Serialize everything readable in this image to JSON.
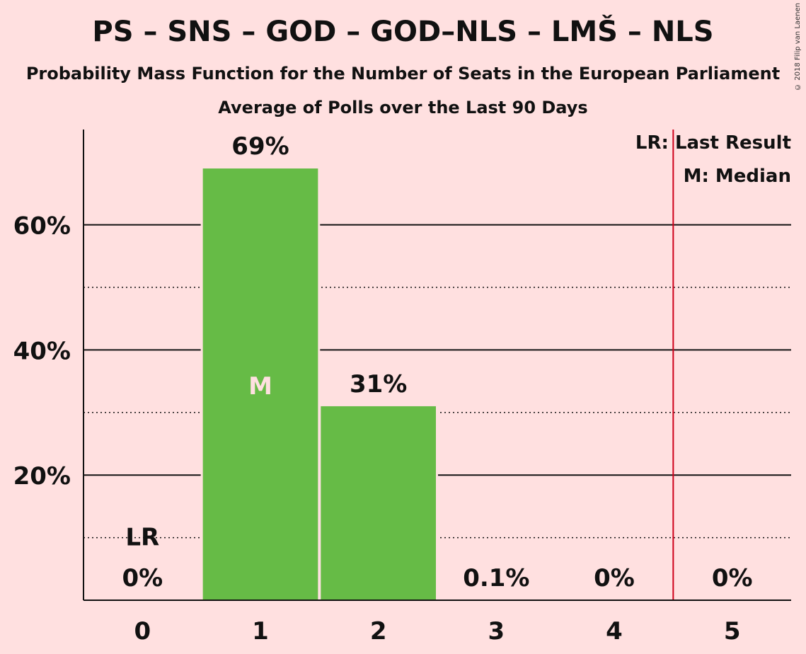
{
  "header": {
    "title": "PS – SNS – GOD – GOD–NLS – LMŠ – NLS",
    "subtitle": "Probability Mass Function for the Number of Seats in the European Parliament",
    "subtitle2": "Average of Polls over the Last 90 Days",
    "copyright": "© 2018 Filip van Laenen"
  },
  "legend": {
    "lr": "LR: Last Result",
    "m": "M: Median"
  },
  "markers": {
    "lr_label": "LR",
    "median_label": "M",
    "last_result_seats": 0,
    "median_seats": 1,
    "majority_line_at": 4.5
  },
  "colors": {
    "background": "#ffe0e0",
    "bar": "#66bb46",
    "majority_line": "#d0021b",
    "text": "#111111"
  },
  "chart_data": {
    "type": "bar",
    "categories": [
      "0",
      "1",
      "2",
      "3",
      "4",
      "5"
    ],
    "values": [
      0,
      69,
      31,
      0.1,
      0,
      0
    ],
    "data_labels": [
      "0%",
      "69%",
      "31%",
      "0.1%",
      "0%",
      "0%"
    ],
    "ylim": [
      0,
      75
    ],
    "yticks": [
      20,
      40,
      60
    ],
    "ytick_labels": [
      "20%",
      "40%",
      "60%"
    ],
    "minor_gridlines": [
      10,
      30,
      50
    ],
    "grid": true,
    "legend_position": "top-right"
  }
}
